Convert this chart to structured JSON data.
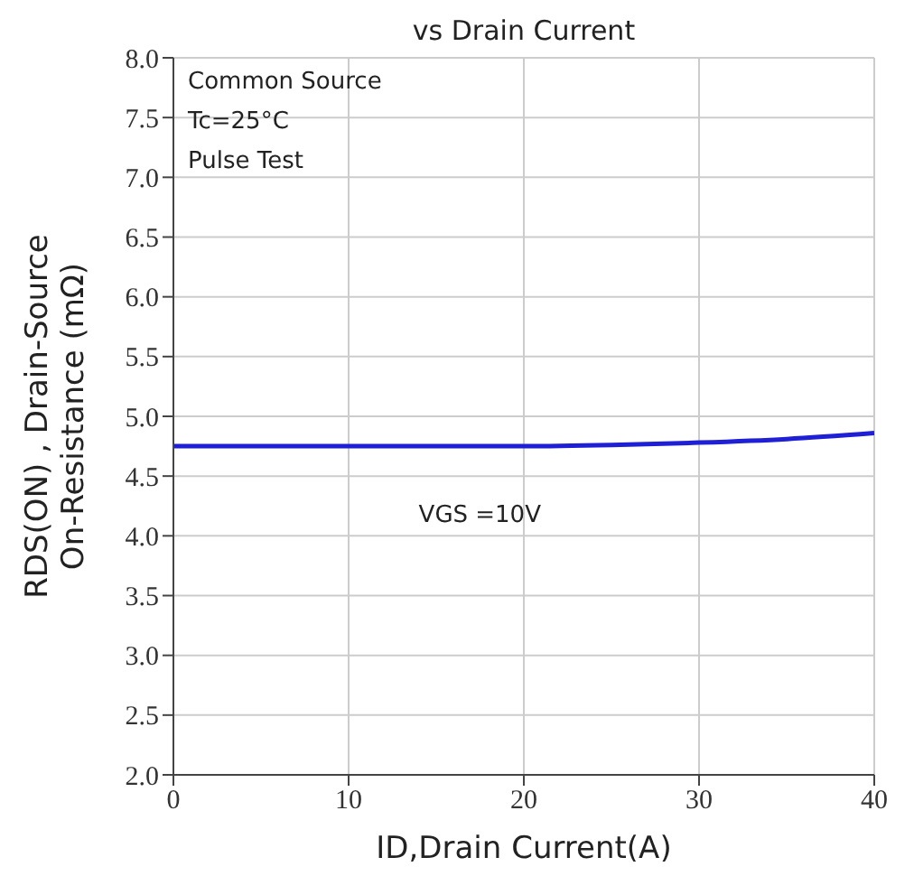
{
  "chart_data": {
    "type": "line",
    "title": "vs Drain Current",
    "xlabel": "ID,Drain Current(A)",
    "ylabel": "RDS(ON) , Drain-Source\nOn-Resistance (mΩ)",
    "annotations": [
      "Common Source",
      "Tc=25°C",
      "Pulse Test",
      "VGS =10V"
    ],
    "x": [
      0,
      10,
      20,
      25,
      30,
      35,
      40
    ],
    "series": [
      {
        "color": "#1f1fd6",
        "values": [
          4.75,
          4.75,
          4.75,
          4.76,
          4.78,
          4.81,
          4.86
        ]
      }
    ],
    "xlim": [
      0,
      40
    ],
    "xticks": [
      0,
      10,
      20,
      30,
      40
    ],
    "ylim": [
      2,
      8
    ],
    "yticks": [
      {
        "value": 2,
        "label": "2.0"
      },
      {
        "value": 2.5,
        "label": "2.5"
      },
      {
        "value": 3,
        "label": "3.0"
      },
      {
        "value": 3.5,
        "label": "3.5"
      },
      {
        "value": 4,
        "label": "4.0"
      },
      {
        "value": 4.5,
        "label": "4.5"
      },
      {
        "value": 5,
        "label": "5.0"
      },
      {
        "value": 5.5,
        "label": "5.5"
      },
      {
        "value": 6,
        "label": "6.0"
      },
      {
        "value": 6.5,
        "label": "6.5"
      },
      {
        "value": 7,
        "label": "7.0"
      },
      {
        "value": 7.5,
        "label": "7.5"
      },
      {
        "value": 8,
        "label": "8.0"
      }
    ],
    "grid": true,
    "legend": false,
    "marker": "none",
    "line_style": "solid"
  }
}
